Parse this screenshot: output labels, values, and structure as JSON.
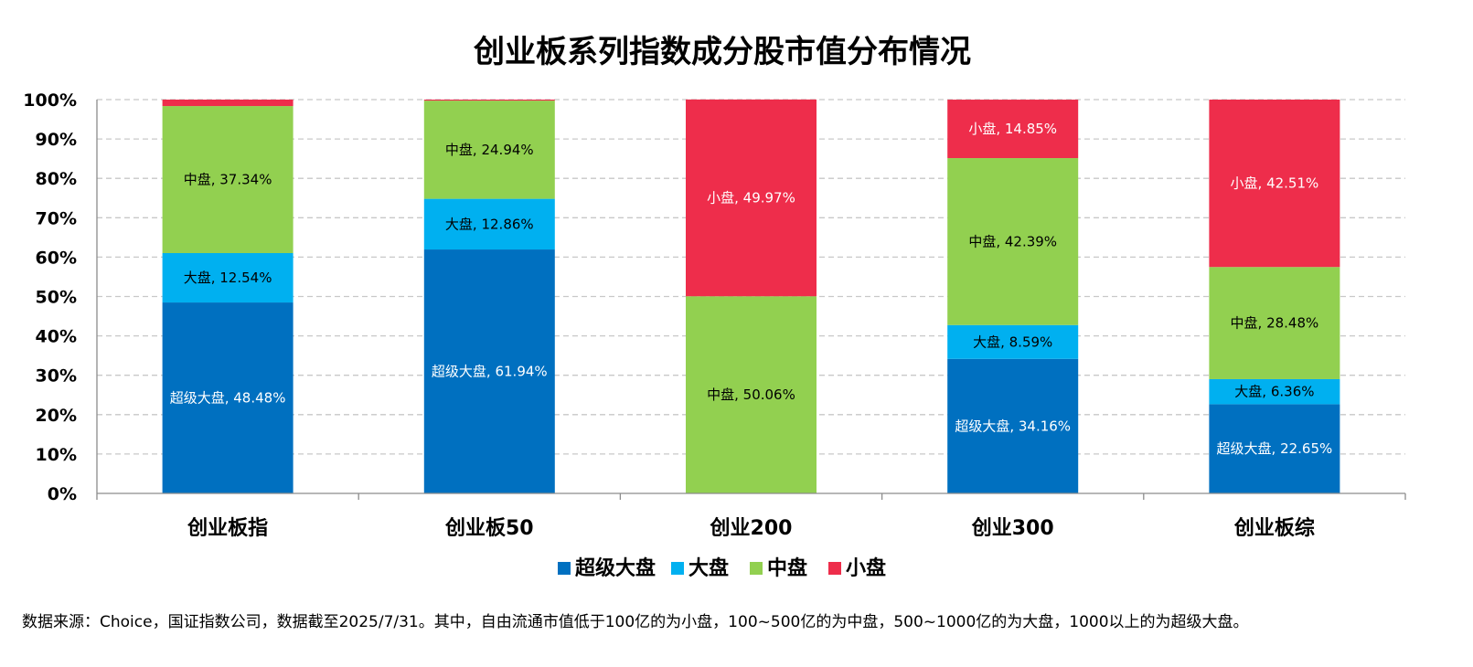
{
  "chart_data": {
    "type": "bar",
    "stacked": true,
    "title": "创业板系列指数成分股市值分布情况",
    "categories": [
      "创业板指",
      "创业板50",
      "创业200",
      "创业300",
      "创业板综"
    ],
    "ylim": [
      0,
      100
    ],
    "yticks": [
      "0%",
      "10%",
      "20%",
      "30%",
      "40%",
      "50%",
      "60%",
      "70%",
      "80%",
      "90%",
      "100%"
    ],
    "grid": true,
    "legend_position": "bottom",
    "series": [
      {
        "name": "超级大盘",
        "color": "#0070C0",
        "label_color": "#ffffff",
        "values": [
          48.48,
          61.94,
          0,
          34.16,
          22.65
        ],
        "labels": [
          "超级大盘, 48.48%",
          "超级大盘, 61.94%",
          "",
          "超级大盘, 34.16%",
          "超级大盘, 22.65%"
        ]
      },
      {
        "name": "大盘",
        "color": "#00B0F0",
        "label_color": "#000000",
        "values": [
          12.54,
          12.86,
          0,
          8.59,
          6.36
        ],
        "labels": [
          "大盘, 12.54%",
          "大盘, 12.86%",
          "",
          "大盘, 8.59%",
          "大盘, 6.36%"
        ]
      },
      {
        "name": "中盘",
        "color": "#92D050",
        "label_color": "#000000",
        "values": [
          37.34,
          24.94,
          50.06,
          42.39,
          28.48
        ],
        "labels": [
          "中盘, 37.34%",
          "中盘, 24.94%",
          "中盘, 50.06%",
          "中盘, 42.39%",
          "中盘, 28.48%"
        ]
      },
      {
        "name": "小盘",
        "color": "#EE2D4B",
        "label_color": "#ffffff",
        "values": [
          1.64,
          0.26,
          49.97,
          14.85,
          42.51
        ],
        "labels": [
          "",
          "",
          "小盘, 49.97%",
          "小盘, 14.85%",
          "小盘, 42.51%"
        ]
      }
    ]
  },
  "footnote": "数据来源：Choice，国证指数公司，数据截至2025/7/31。其中，自由流通市值低于100亿的为小盘，100~500亿的为中盘，500~1000亿的为大盘，1000以上的为超级大盘。"
}
